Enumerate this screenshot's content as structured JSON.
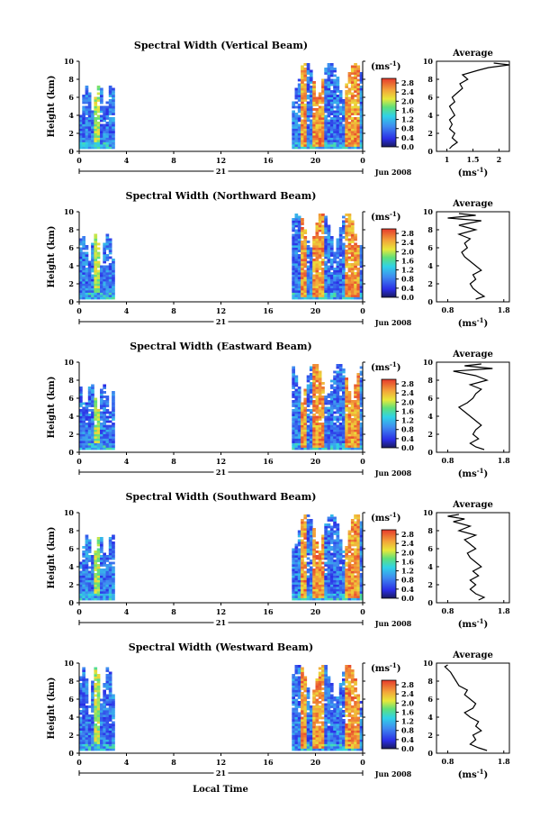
{
  "figure": {
    "xlabel": "Local Time",
    "date_label": "Jun 2008",
    "day_label": "21",
    "units_label": "(ms",
    "units_exp": "-1"
  },
  "chart_data": [
    {
      "type": "heatmap",
      "title": "Spectral Width (Vertical Beam)",
      "ylabel": "Height (km)",
      "xlim": [
        0,
        24
      ],
      "ylim": [
        0,
        10
      ],
      "x_ticks": [
        "0",
        "4",
        "8",
        "12",
        "16",
        "20",
        "0"
      ],
      "y_ticks": [
        "0",
        "2",
        "4",
        "6",
        "8",
        "10"
      ],
      "colorbar": {
        "ticks": [
          "0.0",
          "0.4",
          "0.8",
          "1.2",
          "1.6",
          "2.0",
          "2.4",
          "2.8"
        ],
        "range": [
          0,
          3.0
        ]
      },
      "segments": [
        {
          "x": [
            0,
            3
          ],
          "top": 7.3,
          "base": 0.3
        },
        {
          "x": [
            18,
            24
          ],
          "top": 9.8,
          "base": 0.3
        }
      ],
      "average": {
        "title": "Average",
        "xlabel": "(ms",
        "xlabel_exp": "-1",
        "xlim": [
          0.8,
          2.2
        ],
        "x_ticks": [
          "1",
          "1.5",
          "2"
        ],
        "y_ticks": [
          "0",
          "2",
          "4",
          "6",
          "8",
          "10"
        ],
        "profile": [
          [
            0.3,
            1.05
          ],
          [
            0.6,
            1.1
          ],
          [
            1.0,
            1.2
          ],
          [
            1.5,
            1.1
          ],
          [
            2.0,
            1.15
          ],
          [
            2.5,
            1.05
          ],
          [
            3.0,
            1.1
          ],
          [
            3.5,
            1.05
          ],
          [
            4.0,
            1.15
          ],
          [
            4.5,
            1.1
          ],
          [
            5.0,
            1.05
          ],
          [
            5.5,
            1.15
          ],
          [
            6.0,
            1.1
          ],
          [
            6.5,
            1.2
          ],
          [
            7.0,
            1.3
          ],
          [
            7.5,
            1.25
          ],
          [
            8.0,
            1.4
          ],
          [
            8.5,
            1.3
          ],
          [
            9.0,
            1.6
          ],
          [
            9.3,
            1.8
          ],
          [
            9.6,
            2.2
          ],
          [
            9.8,
            1.9
          ]
        ]
      }
    },
    {
      "type": "heatmap",
      "title": "Spectral Width (Northward Beam)",
      "ylabel": "Height (km)",
      "xlim": [
        0,
        24
      ],
      "ylim": [
        0,
        10
      ],
      "x_ticks": [
        "0",
        "4",
        "8",
        "12",
        "16",
        "20",
        "0"
      ],
      "y_ticks": [
        "0",
        "2",
        "4",
        "6",
        "8",
        "10"
      ],
      "colorbar": {
        "ticks": [
          "0.0",
          "0.4",
          "0.8",
          "1.2",
          "1.6",
          "2.0",
          "2.4",
          "2.8"
        ],
        "range": [
          0,
          3.0
        ]
      },
      "segments": [
        {
          "x": [
            0,
            3
          ],
          "top": 7.5,
          "base": 0.3
        },
        {
          "x": [
            18,
            24
          ],
          "top": 9.8,
          "base": 0.3
        }
      ],
      "average": {
        "title": "Average",
        "xlabel": "(ms",
        "xlabel_exp": "-1",
        "xlim": [
          0.6,
          1.9
        ],
        "x_ticks": [
          "0.8",
          "1.8"
        ],
        "y_ticks": [
          "0",
          "2",
          "4",
          "6",
          "8",
          "10"
        ],
        "profile": [
          [
            0.3,
            1.3
          ],
          [
            0.6,
            1.45
          ],
          [
            1.0,
            1.35
          ],
          [
            1.5,
            1.25
          ],
          [
            2.0,
            1.2
          ],
          [
            2.5,
            1.3
          ],
          [
            3.0,
            1.25
          ],
          [
            3.5,
            1.4
          ],
          [
            4.0,
            1.3
          ],
          [
            4.5,
            1.2
          ],
          [
            5.0,
            1.1
          ],
          [
            5.5,
            1.05
          ],
          [
            6.0,
            1.15
          ],
          [
            6.5,
            1.1
          ],
          [
            7.0,
            1.2
          ],
          [
            7.5,
            1.0
          ],
          [
            8.0,
            1.3
          ],
          [
            8.5,
            1.0
          ],
          [
            9.0,
            1.4
          ],
          [
            9.3,
            0.8
          ],
          [
            9.6,
            1.3
          ],
          [
            9.8,
            1.0
          ]
        ]
      }
    },
    {
      "type": "heatmap",
      "title": "Spectral Width (Eastward Beam)",
      "ylabel": "Height (km)",
      "xlim": [
        0,
        24
      ],
      "ylim": [
        0,
        10
      ],
      "x_ticks": [
        "0",
        "4",
        "8",
        "12",
        "16",
        "20",
        "0"
      ],
      "y_ticks": [
        "0",
        "2",
        "4",
        "6",
        "8",
        "10"
      ],
      "colorbar": {
        "ticks": [
          "0.0",
          "0.4",
          "0.8",
          "1.2",
          "1.6",
          "2.0",
          "2.4",
          "2.8"
        ],
        "range": [
          0,
          3.0
        ]
      },
      "segments": [
        {
          "x": [
            0,
            3
          ],
          "top": 7.5,
          "base": 0.3
        },
        {
          "x": [
            18,
            24
          ],
          "top": 9.8,
          "base": 0.3
        }
      ],
      "average": {
        "title": "Average",
        "xlabel": "(ms",
        "xlabel_exp": "-1",
        "xlim": [
          0.6,
          1.9
        ],
        "x_ticks": [
          "0.8",
          "1.8"
        ],
        "y_ticks": [
          "0",
          "2",
          "4",
          "6",
          "8",
          "10"
        ],
        "profile": [
          [
            0.3,
            1.45
          ],
          [
            0.6,
            1.3
          ],
          [
            1.0,
            1.2
          ],
          [
            1.5,
            1.35
          ],
          [
            2.0,
            1.25
          ],
          [
            2.5,
            1.3
          ],
          [
            3.0,
            1.4
          ],
          [
            3.5,
            1.3
          ],
          [
            4.0,
            1.2
          ],
          [
            4.5,
            1.1
          ],
          [
            5.0,
            1.0
          ],
          [
            5.5,
            1.15
          ],
          [
            6.0,
            1.25
          ],
          [
            6.5,
            1.3
          ],
          [
            7.0,
            1.4
          ],
          [
            7.5,
            1.2
          ],
          [
            8.0,
            1.5
          ],
          [
            8.5,
            1.3
          ],
          [
            9.0,
            0.9
          ],
          [
            9.3,
            1.6
          ],
          [
            9.6,
            1.1
          ],
          [
            9.8,
            1.4
          ]
        ]
      }
    },
    {
      "type": "heatmap",
      "title": "Spectral Width (Southward Beam)",
      "ylabel": "Height (km)",
      "xlim": [
        0,
        24
      ],
      "ylim": [
        0,
        10
      ],
      "x_ticks": [
        "0",
        "4",
        "8",
        "12",
        "16",
        "20",
        "0"
      ],
      "y_ticks": [
        "0",
        "2",
        "4",
        "6",
        "8",
        "10"
      ],
      "colorbar": {
        "ticks": [
          "0.0",
          "0.4",
          "0.8",
          "1.2",
          "1.6",
          "2.0",
          "2.4",
          "2.8"
        ],
        "range": [
          0,
          3.0
        ]
      },
      "segments": [
        {
          "x": [
            0,
            3
          ],
          "top": 7.5,
          "base": 0.3
        },
        {
          "x": [
            18,
            24
          ],
          "top": 9.8,
          "base": 0.3
        }
      ],
      "average": {
        "title": "Average",
        "xlabel": "(ms",
        "xlabel_exp": "-1",
        "xlim": [
          0.6,
          1.9
        ],
        "x_ticks": [
          "0.8",
          "1.8"
        ],
        "y_ticks": [
          "0",
          "2",
          "4",
          "6",
          "8",
          "10"
        ],
        "profile": [
          [
            0.3,
            1.35
          ],
          [
            0.6,
            1.45
          ],
          [
            1.0,
            1.3
          ],
          [
            1.5,
            1.2
          ],
          [
            2.0,
            1.3
          ],
          [
            2.5,
            1.2
          ],
          [
            3.0,
            1.35
          ],
          [
            3.5,
            1.25
          ],
          [
            4.0,
            1.4
          ],
          [
            4.5,
            1.3
          ],
          [
            5.0,
            1.2
          ],
          [
            5.5,
            1.15
          ],
          [
            6.0,
            1.3
          ],
          [
            6.5,
            1.2
          ],
          [
            7.0,
            1.1
          ],
          [
            7.5,
            1.3
          ],
          [
            8.0,
            1.0
          ],
          [
            8.5,
            1.2
          ],
          [
            9.0,
            0.9
          ],
          [
            9.3,
            1.1
          ],
          [
            9.6,
            0.8
          ],
          [
            9.8,
            1.0
          ]
        ]
      }
    },
    {
      "type": "heatmap",
      "title": "Spectral Width (Westward Beam)",
      "ylabel": "Height (km)",
      "xlim": [
        0,
        24
      ],
      "ylim": [
        0,
        10
      ],
      "x_ticks": [
        "0",
        "4",
        "8",
        "12",
        "16",
        "20",
        "0"
      ],
      "y_ticks": [
        "0",
        "2",
        "4",
        "6",
        "8",
        "10"
      ],
      "colorbar": {
        "ticks": [
          "0.0",
          "0.4",
          "0.8",
          "1.2",
          "1.6",
          "2.0",
          "2.4",
          "2.8"
        ],
        "range": [
          0,
          3.0
        ]
      },
      "segments": [
        {
          "x": [
            0,
            3
          ],
          "top": 9.5,
          "base": 0.3
        },
        {
          "x": [
            18,
            24
          ],
          "top": 9.8,
          "base": 0.3
        }
      ],
      "average": {
        "title": "Average",
        "xlabel": "(ms",
        "xlabel_exp": "-1",
        "xlim": [
          0.6,
          1.9
        ],
        "x_ticks": [
          "0.8",
          "1.8"
        ],
        "y_ticks": [
          "0",
          "2",
          "4",
          "6",
          "8",
          "10"
        ],
        "profile": [
          [
            0.3,
            1.5
          ],
          [
            0.6,
            1.35
          ],
          [
            1.0,
            1.2
          ],
          [
            1.5,
            1.3
          ],
          [
            2.0,
            1.25
          ],
          [
            2.5,
            1.4
          ],
          [
            3.0,
            1.3
          ],
          [
            3.5,
            1.35
          ],
          [
            4.0,
            1.2
          ],
          [
            4.5,
            1.1
          ],
          [
            5.0,
            1.25
          ],
          [
            5.5,
            1.3
          ],
          [
            6.0,
            1.2
          ],
          [
            6.5,
            1.1
          ],
          [
            7.0,
            1.15
          ],
          [
            7.5,
            1.0
          ],
          [
            8.0,
            0.95
          ],
          [
            8.5,
            0.9
          ],
          [
            9.0,
            0.85
          ],
          [
            9.3,
            0.8
          ],
          [
            9.6,
            0.75
          ],
          [
            9.8,
            0.8
          ]
        ]
      }
    }
  ]
}
